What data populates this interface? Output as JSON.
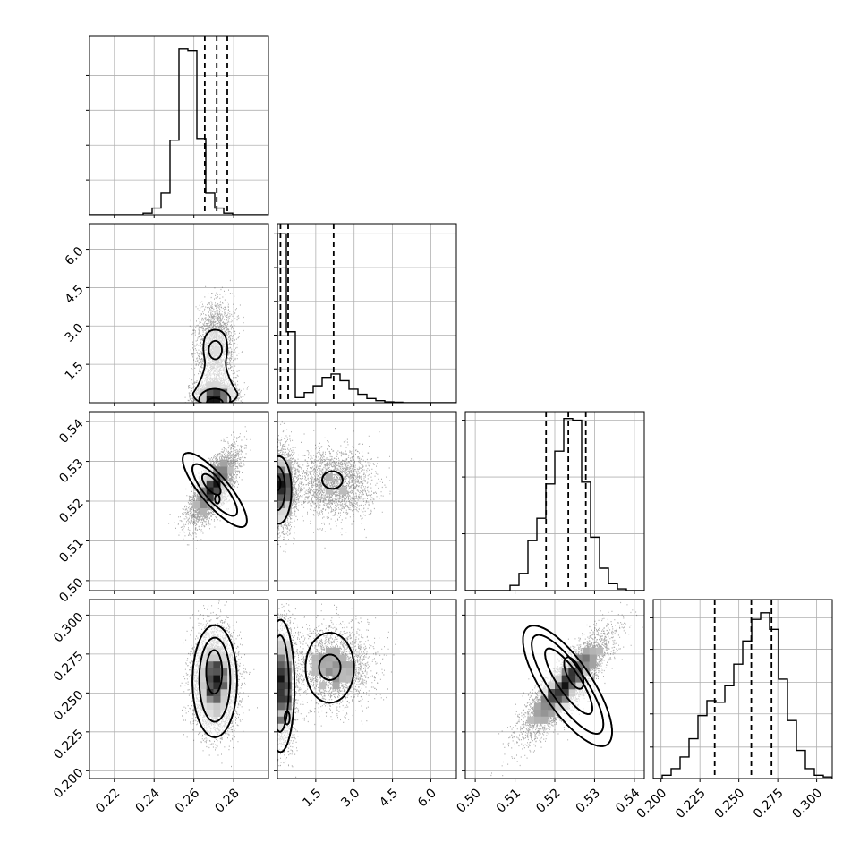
{
  "chart_data": {
    "type": "corner",
    "parameters": [
      {
        "range": [
          0.2075,
          0.2975
        ],
        "ticks": [
          0.22,
          0.24,
          0.26,
          0.28
        ],
        "tick_labels": [
          "0.22",
          "0.24",
          "0.26",
          "0.28"
        ],
        "quantiles": [
          0.2655,
          0.2715,
          0.2768
        ],
        "hist": {
          "edges_start": 0.2075,
          "bin_width": 0.0045,
          "counts": [
            0,
            0,
            0,
            0,
            0,
            0,
            0.01,
            0.04,
            0.13,
            0.45,
            1.0,
            0.99,
            0.46,
            0.13,
            0.04,
            0.01,
            0,
            0,
            0,
            0
          ],
          "ylim": [
            0,
            1.08
          ],
          "yticks": [
            0.21,
            0.42,
            0.63,
            0.84
          ]
        }
      },
      {
        "range": [
          0.0,
          7.0
        ],
        "ticks": [
          1.5,
          3.0,
          4.5,
          6.0
        ],
        "tick_labels": [
          "1.5",
          "3.0",
          "4.5",
          "6.0"
        ],
        "quantiles": [
          0.12,
          0.42,
          2.2
        ],
        "hist": {
          "edges_start": 0.0,
          "bin_width": 0.35,
          "counts": [
            1.0,
            0.42,
            0.03,
            0.06,
            0.1,
            0.15,
            0.17,
            0.13,
            0.08,
            0.05,
            0.025,
            0.012,
            0.005,
            0.003,
            0,
            0,
            0,
            0,
            0,
            0
          ],
          "ylim": [
            0,
            1.06
          ],
          "yticks": [
            0.2,
            0.4,
            0.6,
            0.8,
            1.0
          ]
        }
      },
      {
        "range": [
          0.4975,
          0.5425
        ],
        "ticks": [
          0.5,
          0.51,
          0.52,
          0.53,
          0.54
        ],
        "tick_labels": [
          "0.50",
          "0.51",
          "0.52",
          "0.53",
          "0.54"
        ],
        "quantiles": [
          0.5178,
          0.5234,
          0.5278
        ],
        "hist": {
          "edges_start": 0.4975,
          "bin_width": 0.00225,
          "counts": [
            0,
            0,
            0,
            0,
            0,
            0.03,
            0.1,
            0.29,
            0.42,
            0.62,
            0.81,
            1.0,
            0.99,
            0.63,
            0.31,
            0.13,
            0.04,
            0.01,
            0,
            0
          ],
          "ylim": [
            0,
            1.04
          ],
          "yticks": [
            0.33,
            0.66,
            0.99
          ]
        }
      },
      {
        "range": [
          0.195,
          0.31
        ],
        "ticks": [
          0.2,
          0.225,
          0.25,
          0.275,
          0.3
        ],
        "tick_labels": [
          "0.200",
          "0.225",
          "0.250",
          "0.275",
          "0.300"
        ],
        "quantiles": [
          0.2345,
          0.258,
          0.271
        ],
        "hist": {
          "edges_start": 0.195,
          "bin_width": 0.00575,
          "counts": [
            0,
            0.02,
            0.06,
            0.13,
            0.24,
            0.38,
            0.47,
            0.46,
            0.56,
            0.69,
            0.83,
            0.96,
            1.0,
            0.9,
            0.6,
            0.35,
            0.17,
            0.06,
            0.02,
            0.01
          ],
          "ylim": [
            0,
            1.08
          ],
          "yticks": [
            0.19,
            0.39,
            0.58,
            0.78,
            0.97
          ]
        }
      }
    ],
    "pairs": [
      {
        "row": 1,
        "col": 0,
        "modes": [
          {
            "mx": 0.2708,
            "my": 2.2,
            "sx": 0.0046,
            "sy": 0.85,
            "rho": 0.0,
            "w": 0.45
          },
          {
            "mx": 0.2705,
            "my": 0.25,
            "sx": 0.0052,
            "sy": 0.28,
            "rho": 0.0,
            "w": 0.55
          }
        ],
        "contours": [
          {
            "level": "inner",
            "shape": "ellipse",
            "cx": 0.2708,
            "cy": 2.06,
            "rx": 0.0033,
            "ry": 0.36,
            "rot": 0
          },
          {
            "level": "outer",
            "shape": "peanut",
            "cx": 0.2708,
            "cy": 1.3,
            "ry": 1.55,
            "rx_top": 0.0065,
            "rx_bottom": 0.0112,
            "waist": 0.0036
          },
          {
            "level": "inner",
            "shape": "ellipse",
            "cx": 0.2705,
            "cy": 0.12,
            "rx": 0.0078,
            "ry": 0.42,
            "rot": 0
          },
          {
            "level": "inner",
            "shape": "ellipse",
            "cx": 0.2705,
            "cy": 0.0,
            "rx": 0.004,
            "ry": 0.18,
            "rot": 0
          }
        ]
      },
      {
        "row": 2,
        "col": 0,
        "modes": [
          {
            "mx": 0.2695,
            "my": 0.5235,
            "sx": 0.0055,
            "sy": 0.0042,
            "rho": 0.7,
            "w": 1.0
          }
        ],
        "contours": [
          {
            "level": "outer",
            "shape": "ellipse",
            "cx": 0.2705,
            "cy": 0.5228,
            "rx": 0.0072,
            "ry": 0.0118,
            "rot": -40
          },
          {
            "level": "inner",
            "shape": "ellipse",
            "cx": 0.2705,
            "cy": 0.5228,
            "rx": 0.0052,
            "ry": 0.0082,
            "rot": -40
          },
          {
            "level": "inner",
            "shape": "ellipse",
            "cx": 0.2688,
            "cy": 0.5242,
            "rx": 0.0028,
            "ry": 0.0032,
            "rot": -40
          },
          {
            "level": "inner",
            "shape": "ellipse",
            "cx": 0.2718,
            "cy": 0.5205,
            "rx": 0.0012,
            "ry": 0.0011,
            "rot": 0
          }
        ]
      },
      {
        "row": 3,
        "col": 0,
        "modes": [
          {
            "mx": 0.2705,
            "my": 0.258,
            "sx": 0.0052,
            "sy": 0.016,
            "rho": 0.0,
            "w": 1.0
          }
        ],
        "contours": [
          {
            "level": "outer",
            "shape": "ellipse",
            "cx": 0.2705,
            "cy": 0.2575,
            "rx": 0.0112,
            "ry": 0.036,
            "rot": 0
          },
          {
            "level": "inner",
            "shape": "ellipse",
            "cx": 0.2705,
            "cy": 0.2585,
            "rx": 0.0078,
            "ry": 0.027,
            "rot": 0
          },
          {
            "level": "inner",
            "shape": "ellipse",
            "cx": 0.2702,
            "cy": 0.2635,
            "rx": 0.004,
            "ry": 0.014,
            "rot": 0
          }
        ]
      },
      {
        "row": 2,
        "col": 1,
        "modes": [
          {
            "mx": 2.2,
            "my": 0.5245,
            "sx": 0.75,
            "sy": 0.0042,
            "rho": 0.0,
            "w": 0.45
          },
          {
            "mx": 0.2,
            "my": 0.5235,
            "sx": 0.25,
            "sy": 0.005,
            "rho": 0.0,
            "w": 0.55
          }
        ],
        "contours": [
          {
            "level": "inner",
            "shape": "ellipse",
            "cx": 2.15,
            "cy": 0.5253,
            "rx": 0.4,
            "ry": 0.0022,
            "rot": 0
          },
          {
            "level": "outer",
            "shape": "ellipse",
            "cx": 0.05,
            "cy": 0.5228,
            "rx": 0.5,
            "ry": 0.0085,
            "rot": 0
          },
          {
            "level": "inner",
            "shape": "ellipse",
            "cx": 0.0,
            "cy": 0.5232,
            "rx": 0.3,
            "ry": 0.0055,
            "rot": 0
          },
          {
            "level": "inner",
            "shape": "ellipse",
            "cx": 0.0,
            "cy": 0.5245,
            "rx": 0.12,
            "ry": 0.0018,
            "rot": 0
          }
        ]
      },
      {
        "row": 3,
        "col": 1,
        "modes": [
          {
            "mx": 2.2,
            "my": 0.267,
            "sx": 0.75,
            "sy": 0.013,
            "rho": 0.0,
            "w": 0.45
          },
          {
            "mx": 0.2,
            "my": 0.255,
            "sx": 0.25,
            "sy": 0.02,
            "rho": 0.0,
            "w": 0.55
          }
        ],
        "contours": [
          {
            "level": "inner",
            "shape": "ellipse",
            "cx": 2.05,
            "cy": 0.2662,
            "rx": 0.95,
            "ry": 0.0225,
            "rot": 0
          },
          {
            "level": "inner",
            "shape": "ellipse",
            "cx": 2.05,
            "cy": 0.2665,
            "rx": 0.42,
            "ry": 0.0082,
            "rot": 0
          },
          {
            "level": "outer",
            "shape": "ellipse",
            "cx": 0.12,
            "cy": 0.2545,
            "rx": 0.55,
            "ry": 0.0425,
            "rot": 0
          },
          {
            "level": "inner",
            "shape": "ellipse",
            "cx": 0.1,
            "cy": 0.256,
            "rx": 0.35,
            "ry": 0.031,
            "rot": 0
          },
          {
            "level": "inner",
            "shape": "ellipse",
            "cx": 0.38,
            "cy": 0.234,
            "rx": 0.1,
            "ry": 0.0042,
            "rot": 0
          }
        ]
      },
      {
        "row": 3,
        "col": 2,
        "modes": [
          {
            "mx": 0.5228,
            "my": 0.2555,
            "sx": 0.0052,
            "sy": 0.016,
            "rho": 0.85,
            "w": 1.0
          }
        ],
        "contours": [
          {
            "level": "outer",
            "shape": "ellipse",
            "cx": 0.5232,
            "cy": 0.2545,
            "rx": 0.0062,
            "ry": 0.0455,
            "rot": -34
          },
          {
            "level": "inner",
            "shape": "ellipse",
            "cx": 0.5232,
            "cy": 0.2555,
            "rx": 0.0045,
            "ry": 0.0375,
            "rot": -34
          },
          {
            "level": "inner",
            "shape": "ellipse",
            "cx": 0.5235,
            "cy": 0.2575,
            "rx": 0.0028,
            "ry": 0.025,
            "rot": -34
          },
          {
            "level": "inner",
            "shape": "ellipse",
            "cx": 0.5248,
            "cy": 0.2628,
            "rx": 0.0018,
            "ry": 0.011,
            "rot": -25
          }
        ]
      }
    ],
    "grid": true,
    "colors": {
      "line": "#000000",
      "grid": "#b0b0b0",
      "density": "#000000",
      "background": "#ffffff"
    }
  }
}
